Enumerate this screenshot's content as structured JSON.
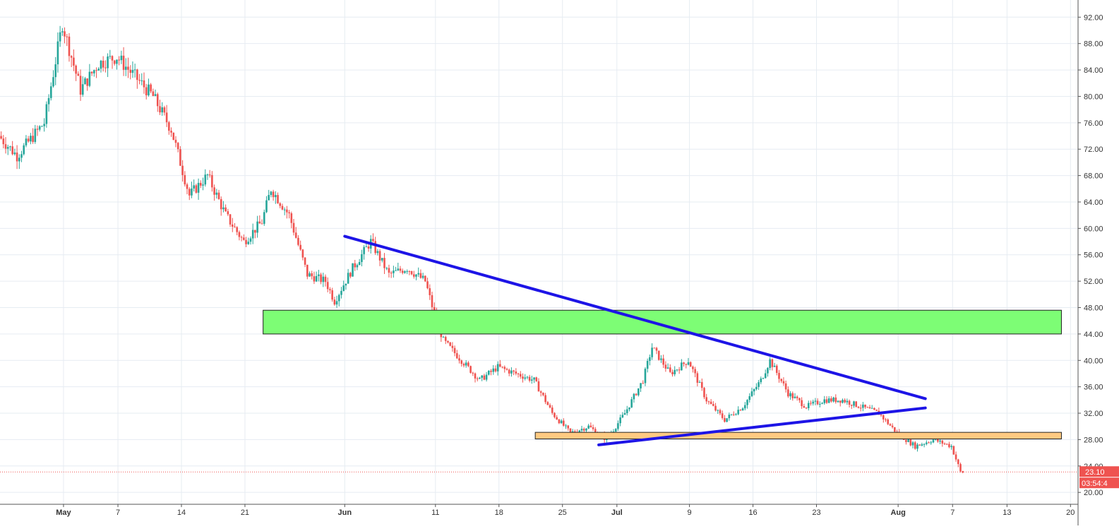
{
  "chart_data": {
    "type": "candlestick",
    "x_tick_labels": [
      "May",
      "7",
      "14",
      "21",
      "Jun",
      "11",
      "18",
      "25",
      "Jul",
      "9",
      "16",
      "23",
      "Aug",
      "7",
      "13",
      "20"
    ],
    "y_tick_labels": [
      "20.00",
      "24.00",
      "28.00",
      "32.00",
      "36.00",
      "40.00",
      "44.00",
      "48.00",
      "52.00",
      "56.00",
      "60.00",
      "64.00",
      "68.00",
      "72.00",
      "76.00",
      "80.00",
      "84.00",
      "88.00",
      "92.00"
    ],
    "ylim": [
      18.2,
      94.6
    ],
    "x_range_days": [
      "2018-04-24",
      "2018-08-20"
    ],
    "grid": true,
    "last_price": {
      "value": 23.1,
      "label": "23.10",
      "color": "#ef5350"
    },
    "countdown_label": "03:54:4",
    "colors": {
      "up": "#26a69a",
      "down": "#ef5350",
      "grid": "#e6ecf2"
    },
    "price_path": [
      [
        "2018-04-24",
        74
      ],
      [
        "2018-04-26",
        71
      ],
      [
        "2018-04-29",
        76
      ],
      [
        "2018-05-01",
        91
      ],
      [
        "2018-05-03",
        81
      ],
      [
        "2018-05-05",
        85
      ],
      [
        "2018-05-07",
        86
      ],
      [
        "2018-05-09",
        83
      ],
      [
        "2018-05-11",
        80
      ],
      [
        "2018-05-13",
        75
      ],
      [
        "2018-05-15",
        65
      ],
      [
        "2018-05-17",
        68
      ],
      [
        "2018-05-19",
        62
      ],
      [
        "2018-05-21",
        58
      ],
      [
        "2018-05-23",
        61
      ],
      [
        "2018-05-24",
        66
      ],
      [
        "2018-05-26",
        62
      ],
      [
        "2018-05-28",
        53
      ],
      [
        "2018-05-30",
        52
      ],
      [
        "2018-05-31",
        49
      ],
      [
        "2018-06-02",
        54
      ],
      [
        "2018-06-04",
        58
      ],
      [
        "2018-06-06",
        53
      ],
      [
        "2018-06-08",
        54
      ],
      [
        "2018-06-10",
        52
      ],
      [
        "2018-06-11",
        47
      ],
      [
        "2018-06-12",
        43
      ],
      [
        "2018-06-14",
        40
      ],
      [
        "2018-06-16",
        37
      ],
      [
        "2018-06-18",
        39
      ],
      [
        "2018-06-20",
        38
      ],
      [
        "2018-06-22",
        37
      ],
      [
        "2018-06-24",
        32
      ],
      [
        "2018-06-26",
        29
      ],
      [
        "2018-06-28",
        30
      ],
      [
        "2018-06-30",
        28
      ],
      [
        "2018-07-02",
        32
      ],
      [
        "2018-07-04",
        37
      ],
      [
        "2018-07-05",
        42
      ],
      [
        "2018-07-07",
        38
      ],
      [
        "2018-07-09",
        40
      ],
      [
        "2018-07-11",
        34
      ],
      [
        "2018-07-13",
        31
      ],
      [
        "2018-07-15",
        33
      ],
      [
        "2018-07-17",
        37
      ],
      [
        "2018-07-18",
        40
      ],
      [
        "2018-07-20",
        35
      ],
      [
        "2018-07-22",
        33
      ],
      [
        "2018-07-24",
        34
      ],
      [
        "2018-07-26",
        34
      ],
      [
        "2018-07-28",
        33
      ],
      [
        "2018-07-30",
        32
      ],
      [
        "2018-08-01",
        29
      ],
      [
        "2018-08-03",
        27
      ],
      [
        "2018-08-05",
        28
      ],
      [
        "2018-08-07",
        27
      ],
      [
        "2018-08-08",
        23.1
      ]
    ],
    "annotations": {
      "resistance_zone": {
        "type": "rectangle",
        "from": "2018-05-23",
        "to": "2018-08-19",
        "low": 44.0,
        "high": 47.6,
        "fill": "#7dfd75"
      },
      "support_zone": {
        "type": "rectangle",
        "from": "2018-06-22",
        "to": "2018-08-19",
        "low": 28.1,
        "high": 29.1,
        "fill": "#ffca82"
      },
      "down_trendline": {
        "type": "line",
        "from": [
          "2018-06-01",
          58.8
        ],
        "to": [
          "2018-08-04",
          34.2
        ],
        "color": "#1d14e6"
      },
      "up_trendline": {
        "type": "line",
        "from": [
          "2018-06-29",
          27.2
        ],
        "to": [
          "2018-08-04",
          32.8
        ],
        "color": "#1d14e6"
      }
    }
  }
}
